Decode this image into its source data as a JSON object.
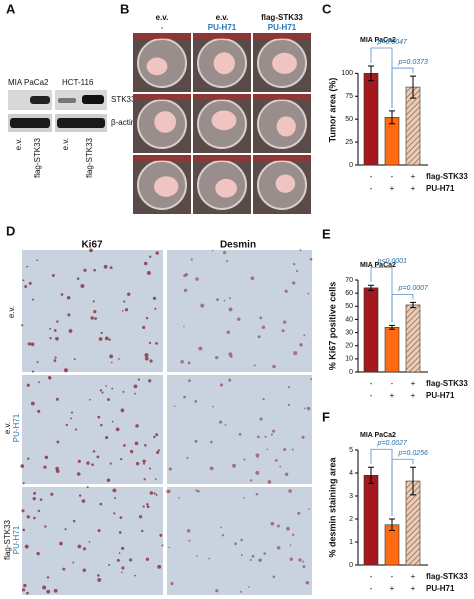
{
  "panel_labels": [
    "A",
    "B",
    "C",
    "D",
    "E",
    "F"
  ],
  "blot": {
    "cell_lines": [
      "MIA PaCa2",
      "HCT-116"
    ],
    "proteins": [
      "STK33",
      "β-actin"
    ],
    "lanes": [
      "e.v.",
      "flag-STK33",
      "e.v.",
      "flag-STK33"
    ]
  },
  "tumor_images": {
    "columns": [
      {
        "line1": "e.v.",
        "line2": "-"
      },
      {
        "line1": "e.v.",
        "line2": "PU-H71"
      },
      {
        "line1": "flag-STK33",
        "line2": "PU-H71"
      }
    ]
  },
  "ihc": {
    "columns": [
      "Ki67",
      "Desmin"
    ],
    "rows": [
      [
        "e.v."
      ],
      [
        "e.v.",
        "PU-H71"
      ],
      [
        "flag-STK33",
        "PU-H71"
      ]
    ]
  },
  "chart_data": [
    {
      "type": "bar",
      "title": "MIA PaCa2",
      "ylabel": "Tumor area (%)",
      "categories": [
        null,
        null,
        null
      ],
      "values": [
        100,
        52,
        85
      ],
      "errors": [
        8,
        7,
        12
      ],
      "colors": [
        "#a3191e",
        "#ff6a13",
        "#c8906a"
      ],
      "hatched": [
        false,
        false,
        true
      ],
      "ylim": [
        0,
        120
      ],
      "yticks": [
        0,
        25,
        50,
        75,
        100
      ],
      "p_values": [
        "p=0.0047",
        "p=0.0373"
      ],
      "conditions": [
        {
          "name": "flag-STK33",
          "signs": [
            "-",
            "-",
            "+"
          ]
        },
        {
          "name": "PU-H71",
          "signs": [
            "-",
            "+",
            "+"
          ]
        }
      ]
    },
    {
      "type": "bar",
      "title": "MIA PaCa2",
      "ylabel": "% Ki67 positive cells",
      "categories": [
        null,
        null,
        null
      ],
      "values": [
        64,
        34,
        51
      ],
      "errors": [
        2,
        1.5,
        2
      ],
      "colors": [
        "#a3191e",
        "#ff6a13",
        "#c8906a"
      ],
      "hatched": [
        false,
        false,
        true
      ],
      "ylim": [
        0,
        70
      ],
      "yticks": [
        0,
        10,
        20,
        30,
        40,
        50,
        60,
        70
      ],
      "p_values": [
        "p<0.0001",
        "p=0.0007"
      ],
      "conditions": [
        {
          "name": "flag-STK33",
          "signs": [
            "-",
            "-",
            "+"
          ]
        },
        {
          "name": "PU-H71",
          "signs": [
            "-",
            "+",
            "+"
          ]
        }
      ]
    },
    {
      "type": "bar",
      "title": "MIA PaCa2",
      "ylabel": "% desmin staining area",
      "categories": [
        null,
        null,
        null
      ],
      "values": [
        3.9,
        1.75,
        3.65
      ],
      "errors": [
        0.35,
        0.25,
        0.6
      ],
      "colors": [
        "#a3191e",
        "#ff6a13",
        "#c8906a"
      ],
      "hatched": [
        false,
        false,
        true
      ],
      "ylim": [
        0,
        5
      ],
      "yticks": [
        0,
        1,
        2,
        3,
        4,
        5
      ],
      "p_values": [
        "p=0.0027",
        "p=0.0256"
      ],
      "conditions": [
        {
          "name": "flag-STK33",
          "signs": [
            "-",
            "-",
            "+"
          ]
        },
        {
          "name": "PU-H71",
          "signs": [
            "-",
            "+",
            "+"
          ]
        }
      ]
    }
  ]
}
